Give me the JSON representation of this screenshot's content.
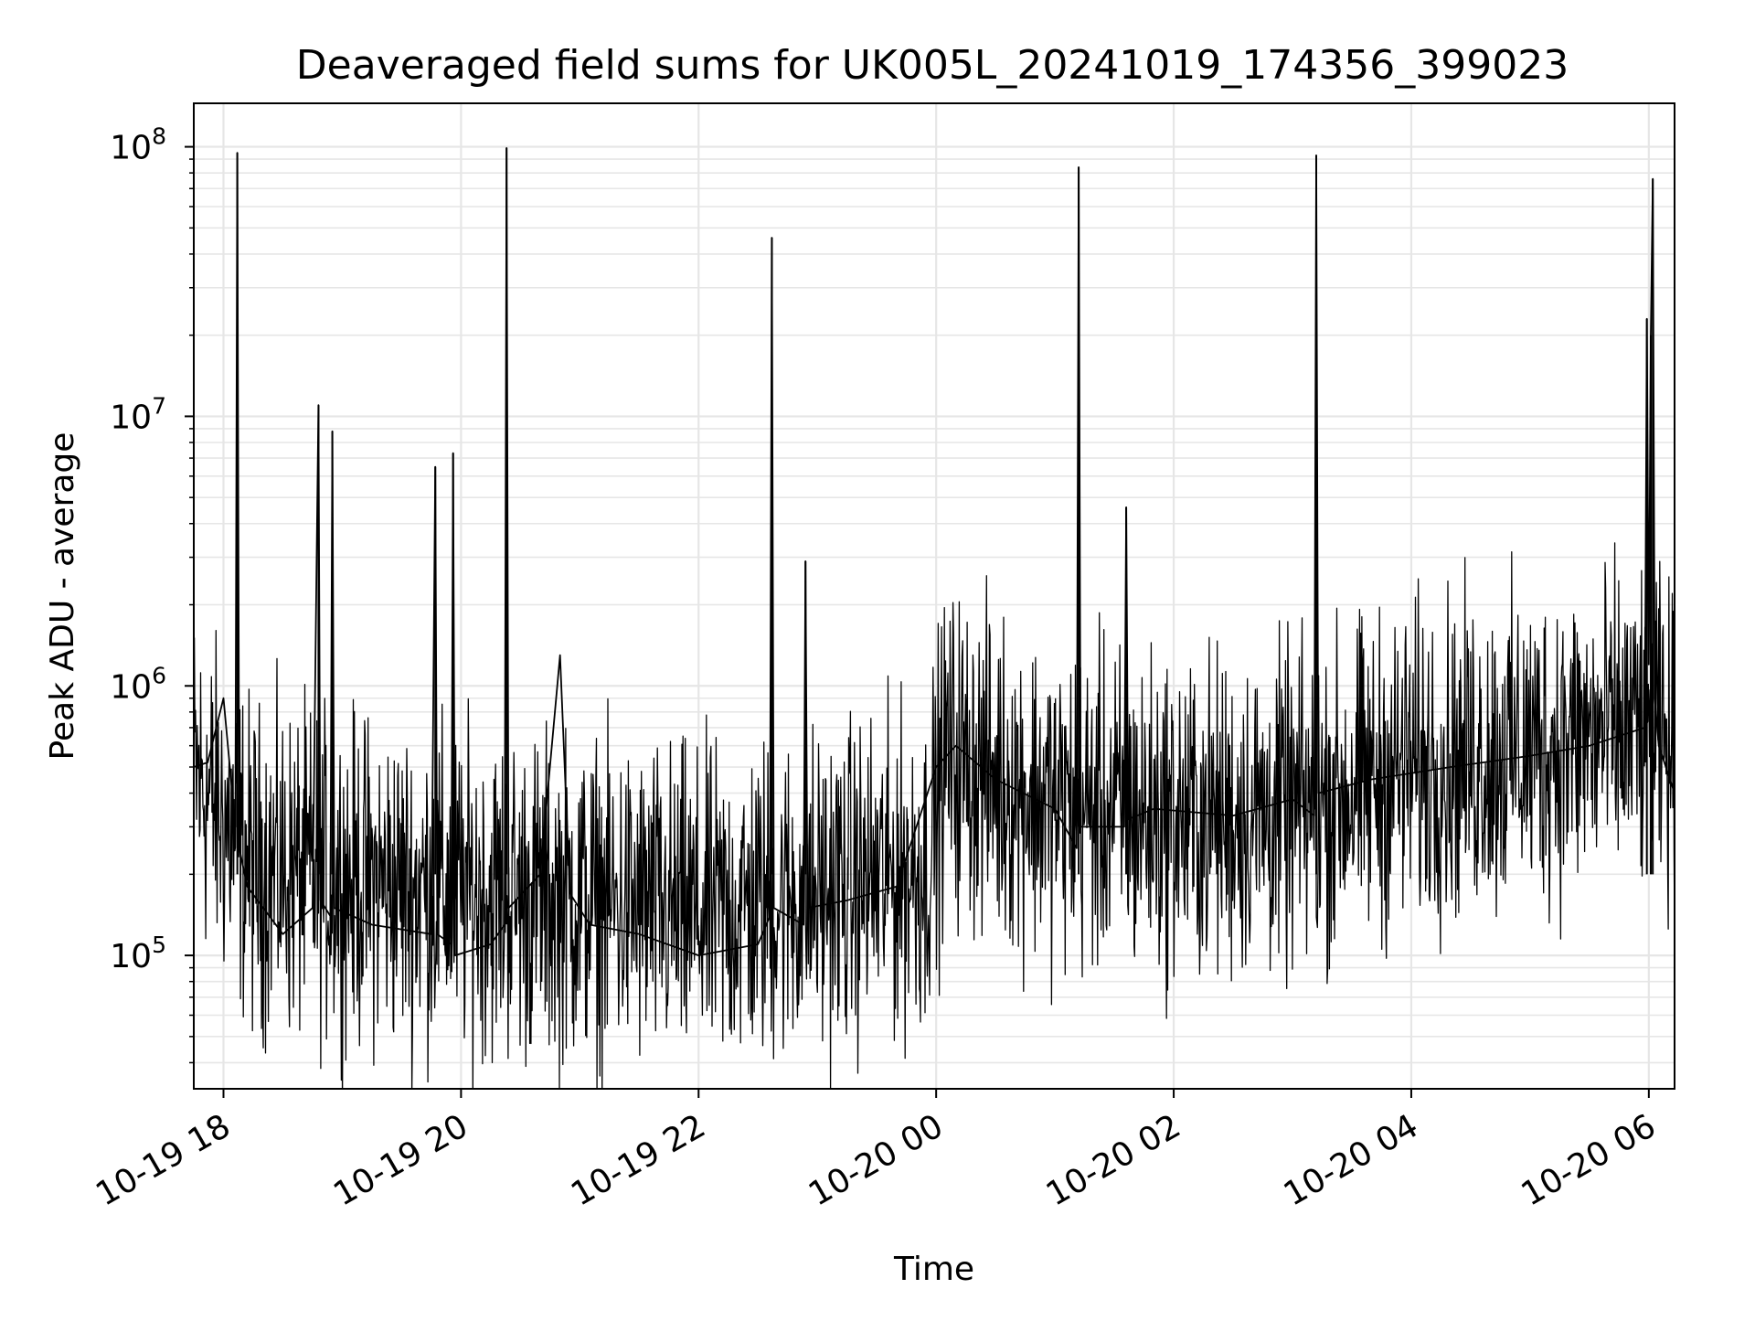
{
  "chart_data": {
    "type": "line",
    "title": "Deaveraged field sums for UK005L_20241019_174356_399023",
    "xlabel": "Time",
    "ylabel": "Peak ADU - average",
    "yscale": "log",
    "xlim": [
      "2024-10-19 17:45",
      "2024-10-20 06:13"
    ],
    "ylim": [
      32000,
      145000000
    ],
    "grid": true,
    "legend": "none",
    "line_color": "#000000",
    "x_ticks": [
      {
        "value": "2024-10-19 18:00",
        "label": "10-19 18"
      },
      {
        "value": "2024-10-19 20:00",
        "label": "10-19 20"
      },
      {
        "value": "2024-10-19 22:00",
        "label": "10-19 22"
      },
      {
        "value": "2024-10-20 00:00",
        "label": "10-20 00"
      },
      {
        "value": "2024-10-20 02:00",
        "label": "10-20 02"
      },
      {
        "value": "2024-10-20 04:00",
        "label": "10-20 04"
      },
      {
        "value": "2024-10-20 06:00",
        "label": "10-20 06"
      }
    ],
    "y_ticks": [
      {
        "value": 100000,
        "base": "10",
        "exp": "5"
      },
      {
        "value": 1000000,
        "base": "10",
        "exp": "6"
      },
      {
        "value": 10000000,
        "base": "10",
        "exp": "7"
      },
      {
        "value": 100000000,
        "base": "10",
        "exp": "8"
      }
    ],
    "series": [
      {
        "x": [
          "2024-10-19 17:45",
          "2024-10-19 17:52",
          "2024-10-19 18:00",
          "2024-10-19 18:06",
          "2024-10-19 18:07",
          "2024-10-19 18:08",
          "2024-10-19 18:12",
          "2024-10-19 18:30",
          "2024-10-19 18:45",
          "2024-10-19 18:48",
          "2024-10-19 18:49",
          "2024-10-19 18:54",
          "2024-10-19 18:55",
          "2024-10-19 18:56",
          "2024-10-19 19:15",
          "2024-10-19 19:45",
          "2024-10-19 19:47",
          "2024-10-19 19:48",
          "2024-10-19 19:55",
          "2024-10-19 19:56",
          "2024-10-19 19:57",
          "2024-10-19 20:15",
          "2024-10-19 20:22",
          "2024-10-19 20:23",
          "2024-10-19 20:24",
          "2024-10-19 20:40",
          "2024-10-19 20:50",
          "2024-10-19 20:55",
          "2024-10-19 21:05",
          "2024-10-19 21:30",
          "2024-10-19 22:00",
          "2024-10-19 22:30",
          "2024-10-19 22:36",
          "2024-10-19 22:37",
          "2024-10-19 22:38",
          "2024-10-19 22:53",
          "2024-10-19 22:54",
          "2024-10-19 22:55",
          "2024-10-19 23:15",
          "2024-10-19 23:40",
          "2024-10-20 00:00",
          "2024-10-20 00:10",
          "2024-10-20 00:30",
          "2024-10-20 01:00",
          "2024-10-20 01:11",
          "2024-10-20 01:12",
          "2024-10-20 01:13",
          "2024-10-20 01:35",
          "2024-10-20 01:36",
          "2024-10-20 01:37",
          "2024-10-20 01:50",
          "2024-10-20 02:30",
          "2024-10-20 03:00",
          "2024-10-20 03:11",
          "2024-10-20 03:12",
          "2024-10-20 03:13",
          "2024-10-20 03:40",
          "2024-10-20 04:20",
          "2024-10-20 05:00",
          "2024-10-20 05:30",
          "2024-10-20 05:58",
          "2024-10-20 05:59",
          "2024-10-20 06:00",
          "2024-10-20 06:01",
          "2024-10-20 06:02",
          "2024-10-20 06:03",
          "2024-10-20 06:05",
          "2024-10-20 06:13"
        ],
        "y": [
          500000,
          520000,
          900000,
          300000,
          95000000,
          250000,
          180000,
          120000,
          150000,
          11000000,
          160000,
          140000,
          8800000,
          150000,
          130000,
          120000,
          6500000,
          120000,
          110000,
          7300000,
          100000,
          110000,
          130000,
          99000000,
          150000,
          200000,
          1300000,
          170000,
          130000,
          120000,
          100000,
          110000,
          140000,
          46000000,
          150000,
          130000,
          2900000,
          150000,
          160000,
          180000,
          500000,
          600000,
          450000,
          350000,
          250000,
          84000000,
          300000,
          300000,
          4600000,
          320000,
          350000,
          330000,
          380000,
          330000,
          93000000,
          400000,
          450000,
          500000,
          550000,
          600000,
          700000,
          23000000,
          1200000,
          20000000,
          76000000,
          900000,
          600000,
          400000
        ]
      }
    ],
    "noise_band": {
      "x": [
        "2024-10-19 17:45",
        "2024-10-19 18:15",
        "2024-10-19 19:00",
        "2024-10-19 20:00",
        "2024-10-19 21:00",
        "2024-10-19 22:00",
        "2024-10-19 23:00",
        "2024-10-19 23:55",
        "2024-10-20 00:05",
        "2024-10-20 01:00",
        "2024-10-20 02:00",
        "2024-10-20 03:00",
        "2024-10-20 04:00",
        "2024-10-20 05:00",
        "2024-10-20 06:00",
        "2024-10-20 06:13"
      ],
      "center": [
        480000,
        210000,
        190000,
        170000,
        160000,
        140000,
        170000,
        210000,
        560000,
        360000,
        320000,
        340000,
        500000,
        580000,
        700000,
        520000
      ]
    }
  }
}
